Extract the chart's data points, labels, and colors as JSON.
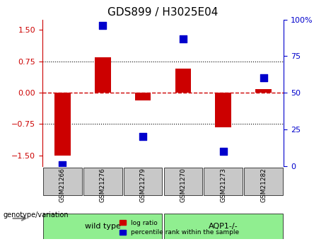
{
  "title": "GDS899 / H3025E04",
  "samples": [
    "GSM21266",
    "GSM21276",
    "GSM21279",
    "GSM21270",
    "GSM21273",
    "GSM21282"
  ],
  "log_ratio": [
    -1.5,
    0.85,
    -0.18,
    0.58,
    -0.82,
    0.09
  ],
  "percentile_rank": [
    1,
    96,
    20,
    87,
    10,
    60
  ],
  "groups": [
    {
      "label": "wild type",
      "indices": [
        0,
        1,
        2
      ],
      "color": "#90EE90"
    },
    {
      "label": "AQP1-/-",
      "indices": [
        3,
        4,
        5
      ],
      "color": "#90EE90"
    }
  ],
  "group_divider": 2.5,
  "bar_color": "#CC0000",
  "dot_color": "#0000CC",
  "ylim_left": [
    -1.75,
    1.75
  ],
  "ylim_right": [
    0,
    100
  ],
  "yticks_left": [
    -1.5,
    -0.75,
    0,
    0.75,
    1.5
  ],
  "yticks_right": [
    0,
    25,
    50,
    75,
    100
  ],
  "ylabel_left": "",
  "ylabel_right": "",
  "hlines": [
    0.75,
    -0.75
  ],
  "zero_line_color": "#CC0000",
  "hline_color": "#000000",
  "bar_width": 0.4,
  "dot_size": 60,
  "genotype_label": "genotype/variation",
  "legend_log_ratio": "log ratio",
  "legend_percentile": "percentile rank within the sample",
  "tick_color_left": "#CC0000",
  "tick_color_right": "#0000CC",
  "bg_color": "#FFFFFF",
  "plot_bg": "#FFFFFF",
  "gray_box_color": "#C8C8C8",
  "green_box_color": "#90EE90"
}
